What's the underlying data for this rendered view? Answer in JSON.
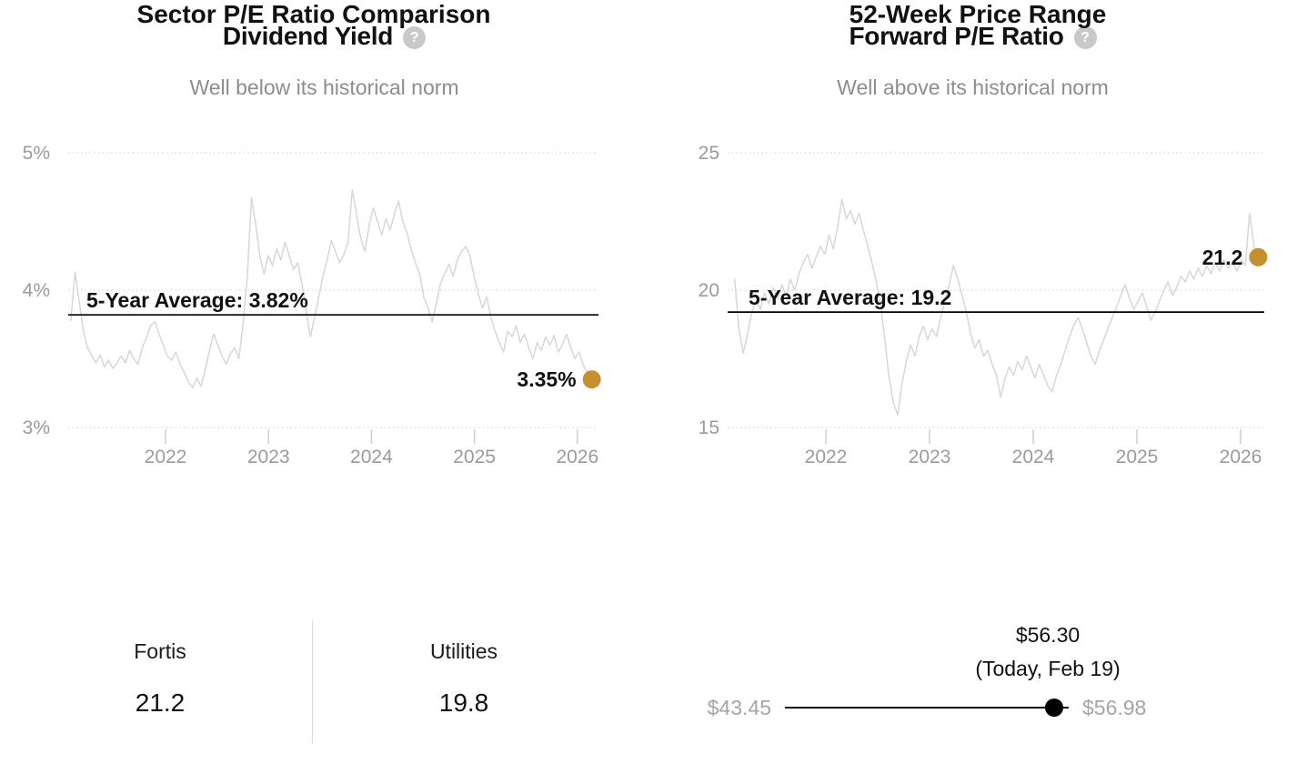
{
  "icons": {
    "help_glyph": "?"
  },
  "accent_color": "#c5912e",
  "chart_data": [
    {
      "type": "line",
      "title": "Dividend Yield",
      "subtitle": "Well below its historical norm",
      "y_ticks": [
        {
          "label": "5%",
          "value": 5
        },
        {
          "label": "4%",
          "value": 4
        },
        {
          "label": "3%",
          "value": 3
        }
      ],
      "x_ticks": [
        {
          "label": "2022",
          "value": 2022
        },
        {
          "label": "2023",
          "value": 2023
        },
        {
          "label": "2024",
          "value": 2024
        },
        {
          "label": "2025",
          "value": 2025
        },
        {
          "label": "2026",
          "value": 2026
        }
      ],
      "average": {
        "label": "5-Year Average: 3.82%",
        "value": 3.82
      },
      "current": {
        "label": "3.35%",
        "value": 3.35
      },
      "line_color": "#d7d7d7",
      "dot_color": "#c5912e",
      "series": {
        "name": "Dividend Yield",
        "x_start": 2021.08,
        "x_end": 2026.14,
        "values": [
          3.78,
          4.13,
          3.92,
          3.7,
          3.58,
          3.52,
          3.47,
          3.53,
          3.44,
          3.49,
          3.43,
          3.47,
          3.52,
          3.47,
          3.56,
          3.5,
          3.46,
          3.58,
          3.65,
          3.74,
          3.77,
          3.68,
          3.6,
          3.52,
          3.49,
          3.55,
          3.46,
          3.4,
          3.33,
          3.29,
          3.36,
          3.3,
          3.42,
          3.56,
          3.68,
          3.6,
          3.52,
          3.46,
          3.54,
          3.58,
          3.5,
          3.75,
          4.1,
          4.67,
          4.48,
          4.25,
          4.12,
          4.25,
          4.18,
          4.3,
          4.22,
          4.35,
          4.25,
          4.15,
          4.2,
          4.05,
          3.85,
          3.66,
          3.8,
          3.95,
          4.1,
          4.22,
          4.36,
          4.28,
          4.2,
          4.26,
          4.35,
          4.73,
          4.55,
          4.38,
          4.28,
          4.47,
          4.6,
          4.5,
          4.4,
          4.52,
          4.44,
          4.55,
          4.65,
          4.5,
          4.42,
          4.3,
          4.2,
          4.12,
          3.95,
          3.87,
          3.77,
          3.9,
          4.05,
          4.12,
          4.19,
          4.1,
          4.22,
          4.28,
          4.32,
          4.25,
          4.1,
          3.97,
          3.87,
          3.95,
          3.8,
          3.7,
          3.62,
          3.55,
          3.7,
          3.66,
          3.74,
          3.62,
          3.68,
          3.58,
          3.5,
          3.62,
          3.56,
          3.66,
          3.6,
          3.67,
          3.55,
          3.6,
          3.68,
          3.58,
          3.5,
          3.55,
          3.45,
          3.4,
          3.35
        ]
      }
    },
    {
      "type": "line",
      "title": "Forward P/E Ratio",
      "subtitle": "Well above its historical norm",
      "y_ticks": [
        {
          "label": "25",
          "value": 25
        },
        {
          "label": "20",
          "value": 20
        },
        {
          "label": "15",
          "value": 15
        }
      ],
      "x_ticks": [
        {
          "label": "2022",
          "value": 2022
        },
        {
          "label": "2023",
          "value": 2023
        },
        {
          "label": "2024",
          "value": 2024
        },
        {
          "label": "2025",
          "value": 2025
        },
        {
          "label": "2026",
          "value": 2026
        }
      ],
      "average": {
        "label": "5-Year Average: 19.2",
        "value": 19.2
      },
      "current": {
        "label": "21.2",
        "value": 21.2
      },
      "line_color": "#d7d7d7",
      "dot_color": "#c5912e",
      "series": {
        "name": "Forward P/E Ratio",
        "x_start": 2021.12,
        "x_end": 2026.17,
        "values": [
          20.4,
          18.6,
          17.7,
          18.4,
          19.2,
          19.6,
          19.3,
          19.9,
          19.5,
          20.1,
          19.7,
          20.2,
          19.8,
          20.4,
          20.0,
          20.6,
          21.0,
          21.3,
          20.8,
          21.2,
          21.6,
          21.3,
          22.0,
          21.5,
          22.3,
          23.3,
          22.6,
          22.9,
          22.4,
          22.8,
          22.2,
          21.6,
          21.0,
          20.3,
          19.5,
          18.2,
          16.8,
          15.9,
          15.45,
          16.6,
          17.4,
          18.0,
          17.6,
          18.3,
          18.7,
          18.2,
          18.6,
          18.3,
          19.0,
          19.6,
          20.2,
          20.9,
          20.4,
          19.8,
          19.2,
          18.4,
          17.9,
          18.2,
          17.6,
          17.8,
          17.3,
          16.9,
          16.1,
          16.8,
          17.2,
          16.9,
          17.4,
          17.1,
          17.6,
          17.2,
          16.8,
          17.3,
          16.9,
          16.5,
          16.3,
          16.9,
          17.3,
          17.8,
          18.3,
          18.7,
          19.0,
          18.6,
          18.1,
          17.6,
          17.3,
          17.8,
          18.2,
          18.6,
          19.0,
          19.4,
          19.8,
          20.2,
          19.7,
          19.3,
          19.6,
          19.9,
          19.4,
          18.9,
          19.2,
          19.6,
          20.0,
          20.3,
          19.8,
          20.1,
          20.5,
          20.3,
          20.7,
          20.4,
          20.8,
          20.5,
          20.9,
          20.6,
          21.0,
          20.7,
          21.1,
          20.8,
          21.0,
          20.7,
          21.1,
          20.9,
          22.8,
          21.6,
          21.2
        ]
      }
    }
  ],
  "sector_comparison": {
    "title": "Sector P/E Ratio Comparison",
    "columns": [
      {
        "label": "Fortis",
        "value": "21.2"
      },
      {
        "label": "Utilities",
        "value": "19.8"
      }
    ]
  },
  "price_range": {
    "title": "52-Week Price Range",
    "low_label": "$43.45",
    "low": 43.45,
    "high_label": "$56.98",
    "high": 56.98,
    "current_label": "$56.30",
    "current": 56.3,
    "current_sub": "(Today, Feb 19)"
  }
}
